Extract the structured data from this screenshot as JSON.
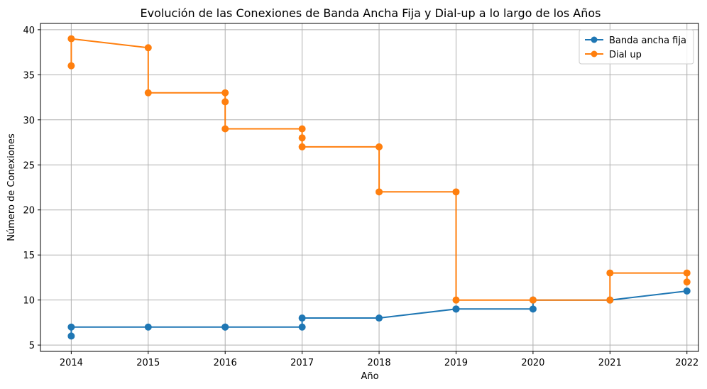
{
  "chart_data": {
    "type": "line",
    "title": "Evolución de las Conexiones de Banda Ancha Fija y Dial-up a lo largo de los Años",
    "xlabel": "Año",
    "ylabel": "Número de Conexiones",
    "xlim": [
      2013.6,
      2022.15
    ],
    "ylim": [
      4.3,
      40.7
    ],
    "xticks": [
      2014,
      2015,
      2016,
      2017,
      2018,
      2019,
      2020,
      2021,
      2022
    ],
    "yticks": [
      5,
      10,
      15,
      20,
      25,
      30,
      35,
      40
    ],
    "grid": true,
    "legend_position": "top-right",
    "series": [
      {
        "name": "Banda ancha fija",
        "color": "#1f77b4",
        "x": [
          2014,
          2014,
          2015,
          2016,
          2016,
          2017,
          2017,
          2018,
          2019,
          2019,
          2020,
          2020,
          2021,
          2022
        ],
        "y": [
          6,
          7,
          7,
          7,
          7,
          7,
          8,
          8,
          9,
          9,
          9,
          10,
          10,
          11
        ]
      },
      {
        "name": "Dial up",
        "color": "#ff7f0e",
        "x": [
          2014,
          2014,
          2015,
          2015,
          2016,
          2016,
          2016,
          2017,
          2017,
          2017,
          2018,
          2018,
          2019,
          2019,
          2020,
          2021,
          2021,
          2022,
          2022
        ],
        "y": [
          36,
          39,
          38,
          33,
          33,
          32,
          29,
          29,
          28,
          27,
          27,
          22,
          22,
          10,
          10,
          10,
          13,
          13,
          12
        ]
      }
    ]
  }
}
